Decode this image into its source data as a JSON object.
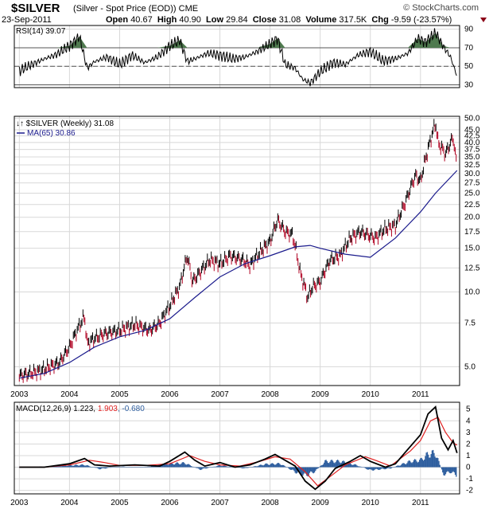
{
  "header": {
    "symbol": "$SILVER",
    "description": "(Silver - Spot Price (EOD))",
    "exchange": "CME",
    "date": "23-Sep-2011",
    "open_label": "Open",
    "open": "40.67",
    "high_label": "High",
    "high": "40.90",
    "low_label": "Low",
    "low": "29.84",
    "close_label": "Close",
    "close": "31.08",
    "volume_label": "Volume",
    "volume": "317.5K",
    "chg_label": "Chg",
    "chg": "-9.59 (-23.57%)",
    "brand": "© StockCharts.com"
  },
  "colors": {
    "price_up": "#000000",
    "price_down": "#b00020",
    "ma": "#1a1a8c",
    "rsi_line": "#000000",
    "rsi_fill": "#4f7a4f",
    "macd_line": "#000000",
    "signal_line": "#e02020",
    "histogram": "#2f5f9f",
    "grid": "#d8d8d8",
    "border": "#000000"
  },
  "chart_data": [
    {
      "type": "line",
      "title": "RSI(14) 39.07",
      "indicator": "RSI(14)",
      "value": "39.07",
      "ylim": [
        27,
        94
      ],
      "y_ticks": [
        "90",
        "70",
        "50",
        "30"
      ],
      "reference_lines": [
        70,
        50,
        30
      ],
      "x": [
        2003.0,
        2003.25,
        2003.5,
        2003.75,
        2004.0,
        2004.2,
        2004.35,
        2004.5,
        2004.75,
        2005.0,
        2005.25,
        2005.5,
        2005.75,
        2006.0,
        2006.2,
        2006.35,
        2006.5,
        2006.75,
        2007.0,
        2007.25,
        2007.5,
        2007.75,
        2008.0,
        2008.15,
        2008.3,
        2008.5,
        2008.65,
        2008.8,
        2009.0,
        2009.25,
        2009.5,
        2009.75,
        2010.0,
        2010.25,
        2010.5,
        2010.75,
        2010.95,
        2011.1,
        2011.3,
        2011.45,
        2011.6,
        2011.73
      ],
      "values": [
        45,
        52,
        58,
        63,
        72,
        82,
        48,
        55,
        60,
        52,
        62,
        54,
        60,
        72,
        78,
        55,
        58,
        64,
        62,
        58,
        60,
        66,
        74,
        80,
        52,
        48,
        36,
        32,
        44,
        54,
        52,
        62,
        66,
        56,
        58,
        64,
        80,
        76,
        86,
        72,
        60,
        39
      ]
    },
    {
      "type": "line",
      "title": "$SILVER (Weekly) 31.08",
      "price_label": "$SILVER (Weekly)",
      "price_value": "31.08",
      "ma_label": "MA(65)",
      "ma_value": "30.86",
      "scale": "log",
      "ylim": [
        4.2,
        51
      ],
      "y_ticks": [
        "50.0",
        "45.0",
        "42.5",
        "40.0",
        "37.5",
        "35.0",
        "32.5",
        "30.0",
        "27.5",
        "25.0",
        "22.5",
        "20.0",
        "17.5",
        "15.0",
        "12.5",
        "10.0",
        "7.5",
        "5.0"
      ],
      "x_ticks": [
        "2003",
        "2004",
        "2005",
        "2006",
        "2007",
        "2008",
        "2009",
        "2010",
        "2011"
      ],
      "series": [
        {
          "name": "$SILVER",
          "x": [
            2003.0,
            2003.2,
            2003.4,
            2003.6,
            2003.8,
            2004.0,
            2004.15,
            2004.3,
            2004.35,
            2004.5,
            2004.7,
            2005.0,
            2005.3,
            2005.6,
            2005.8,
            2006.0,
            2006.2,
            2006.35,
            2006.45,
            2006.6,
            2006.8,
            2007.0,
            2007.2,
            2007.45,
            2007.6,
            2007.8,
            2008.0,
            2008.15,
            2008.3,
            2008.45,
            2008.6,
            2008.75,
            2008.85,
            2009.0,
            2009.2,
            2009.4,
            2009.6,
            2009.8,
            2009.95,
            2010.1,
            2010.3,
            2010.5,
            2010.7,
            2010.9,
            2011.0,
            2011.15,
            2011.3,
            2011.35,
            2011.5,
            2011.65,
            2011.73
          ],
          "values": [
            4.6,
            4.7,
            4.8,
            5.0,
            5.2,
            6.0,
            7.0,
            8.0,
            6.2,
            6.5,
            6.8,
            7.0,
            7.4,
            7.0,
            7.5,
            8.8,
            10.5,
            14.0,
            11.0,
            12.0,
            13.5,
            13.0,
            14.0,
            13.5,
            12.8,
            14.5,
            16.0,
            19.5,
            17.5,
            17.0,
            12.0,
            9.5,
            10.5,
            11.0,
            13.5,
            14.0,
            16.5,
            17.5,
            17.0,
            16.5,
            18.0,
            18.5,
            23.0,
            29.5,
            28.0,
            37.5,
            48.0,
            40.0,
            36.0,
            42.0,
            31.08
          ]
        },
        {
          "name": "MA(65)",
          "x": [
            2003.0,
            2003.5,
            2004.0,
            2004.5,
            2005.0,
            2005.5,
            2006.0,
            2006.5,
            2007.0,
            2007.5,
            2008.0,
            2008.5,
            2008.8,
            2009.0,
            2009.5,
            2010.0,
            2010.5,
            2011.0,
            2011.3,
            2011.73
          ],
          "values": [
            4.5,
            4.7,
            5.2,
            6.0,
            6.6,
            7.0,
            7.8,
            9.5,
            11.5,
            13.0,
            14.0,
            15.2,
            15.4,
            15.0,
            14.2,
            13.8,
            16.5,
            21.0,
            25.0,
            30.86
          ]
        }
      ]
    },
    {
      "type": "line",
      "title": "MACD(12,26,9) 1.223, 1.903, -0.680",
      "indicator": "MACD(12,26,9)",
      "values_text": [
        "1.223",
        "1.903",
        "-0.680"
      ],
      "ylim": [
        -2.3,
        5.6
      ],
      "y_ticks": [
        "5",
        "4",
        "3",
        "2",
        "1",
        "0",
        "-1",
        "-2"
      ],
      "x_ticks": [
        "2003",
        "2004",
        "2005",
        "2006",
        "2007",
        "2008",
        "2009",
        "2010",
        "2011"
      ],
      "series": [
        {
          "name": "MACD",
          "x": [
            2003.0,
            2003.5,
            2004.0,
            2004.3,
            2004.5,
            2004.8,
            2005.3,
            2005.8,
            2006.0,
            2006.3,
            2006.5,
            2006.7,
            2007.0,
            2007.3,
            2007.6,
            2007.9,
            2008.1,
            2008.3,
            2008.5,
            2008.7,
            2008.9,
            2009.1,
            2009.3,
            2009.6,
            2009.8,
            2010.0,
            2010.3,
            2010.5,
            2010.8,
            2011.0,
            2011.15,
            2011.3,
            2011.42,
            2011.55,
            2011.65,
            2011.73
          ],
          "values": [
            0.0,
            0.0,
            0.3,
            0.75,
            0.2,
            0.1,
            0.2,
            0.1,
            0.5,
            1.3,
            0.6,
            0.1,
            0.4,
            0.0,
            0.2,
            0.7,
            1.1,
            0.6,
            0.1,
            -1.2,
            -1.9,
            -1.2,
            -0.1,
            0.5,
            1.0,
            0.5,
            0.0,
            0.3,
            1.8,
            2.8,
            4.6,
            5.2,
            2.5,
            1.5,
            2.3,
            1.223
          ]
        },
        {
          "name": "Signal",
          "x": [
            2003.0,
            2003.5,
            2004.0,
            2004.4,
            2004.7,
            2005.0,
            2005.5,
            2006.0,
            2006.4,
            2006.7,
            2007.0,
            2007.4,
            2007.8,
            2008.1,
            2008.4,
            2008.7,
            2008.95,
            2009.2,
            2009.5,
            2009.9,
            2010.1,
            2010.4,
            2010.8,
            2011.0,
            2011.2,
            2011.35,
            2011.5,
            2011.65,
            2011.73
          ],
          "values": [
            0.0,
            0.0,
            0.2,
            0.6,
            0.4,
            0.15,
            0.15,
            0.3,
            1.0,
            0.5,
            0.2,
            0.1,
            0.5,
            0.9,
            0.7,
            -0.4,
            -1.6,
            -0.8,
            0.2,
            0.9,
            0.6,
            0.1,
            1.4,
            2.3,
            4.0,
            4.3,
            3.0,
            2.1,
            1.903
          ]
        },
        {
          "name": "Histogram",
          "x": [
            2003.0,
            2003.5,
            2004.0,
            2004.3,
            2004.6,
            2005.0,
            2005.5,
            2006.0,
            2006.3,
            2006.6,
            2007.0,
            2007.5,
            2007.9,
            2008.2,
            2008.5,
            2008.7,
            2008.9,
            2009.1,
            2009.4,
            2009.7,
            2010.0,
            2010.4,
            2010.8,
            2011.0,
            2011.15,
            2011.3,
            2011.45,
            2011.6,
            2011.73
          ],
          "values": [
            0.0,
            0.05,
            0.15,
            0.2,
            -0.15,
            0.05,
            0.0,
            0.3,
            0.35,
            -0.2,
            0.15,
            -0.1,
            0.25,
            0.3,
            -0.4,
            -0.7,
            -0.35,
            0.5,
            0.5,
            0.2,
            -0.25,
            -0.1,
            0.5,
            0.6,
            1.1,
            1.2,
            -0.6,
            -0.4,
            -0.68
          ]
        }
      ]
    }
  ]
}
